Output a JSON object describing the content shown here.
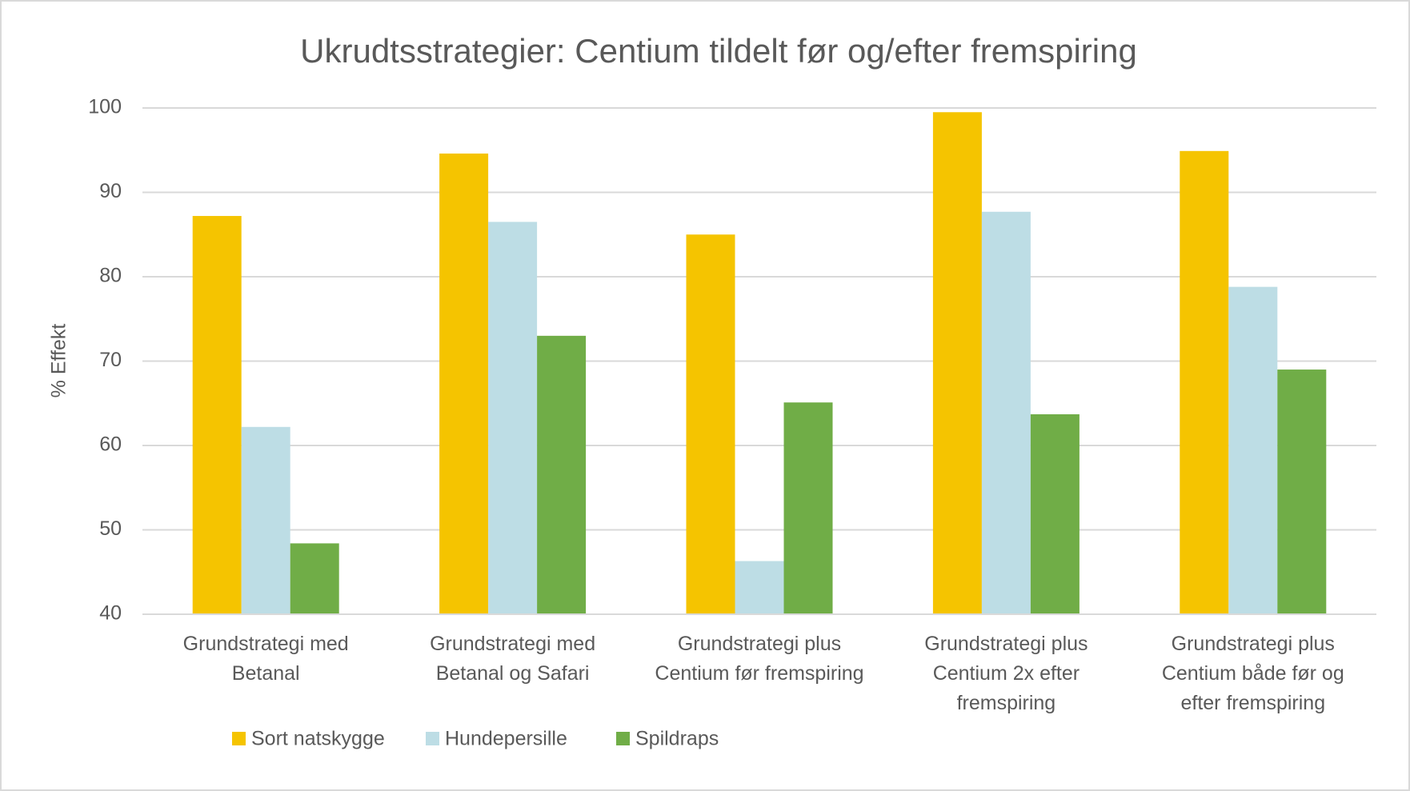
{
  "chart_data": {
    "type": "bar",
    "title": "Ukrudtsstrategier: Centium tildelt  før og/efter fremspiring",
    "y_label": "% Effekt",
    "categories": [
      "Grundstrategi med Betanal",
      "Grundstrategi med Betanal og Safari",
      "Grundstrategi plus Centium før fremspiring",
      "Grundstrategi plus Centium 2x efter fremspiring",
      "Grundstrategi plus Centium både før og efter fremspiring"
    ],
    "series": [
      {
        "name": "Sort natskygge",
        "color": "#f5c400",
        "values": [
          87.2,
          94.6,
          85.0,
          99.5,
          94.9
        ]
      },
      {
        "name": "Hundepersille",
        "color": "#bddde5",
        "values": [
          62.2,
          86.5,
          46.3,
          87.7,
          78.8
        ]
      },
      {
        "name": "Spildraps",
        "color": "#70ad47",
        "values": [
          48.4,
          73.0,
          65.1,
          63.7,
          69.0
        ]
      }
    ],
    "ylim": [
      40,
      100
    ],
    "yticks": [
      40,
      50,
      60,
      70,
      80,
      90,
      100
    ],
    "grid": true,
    "legend": "bottom"
  }
}
